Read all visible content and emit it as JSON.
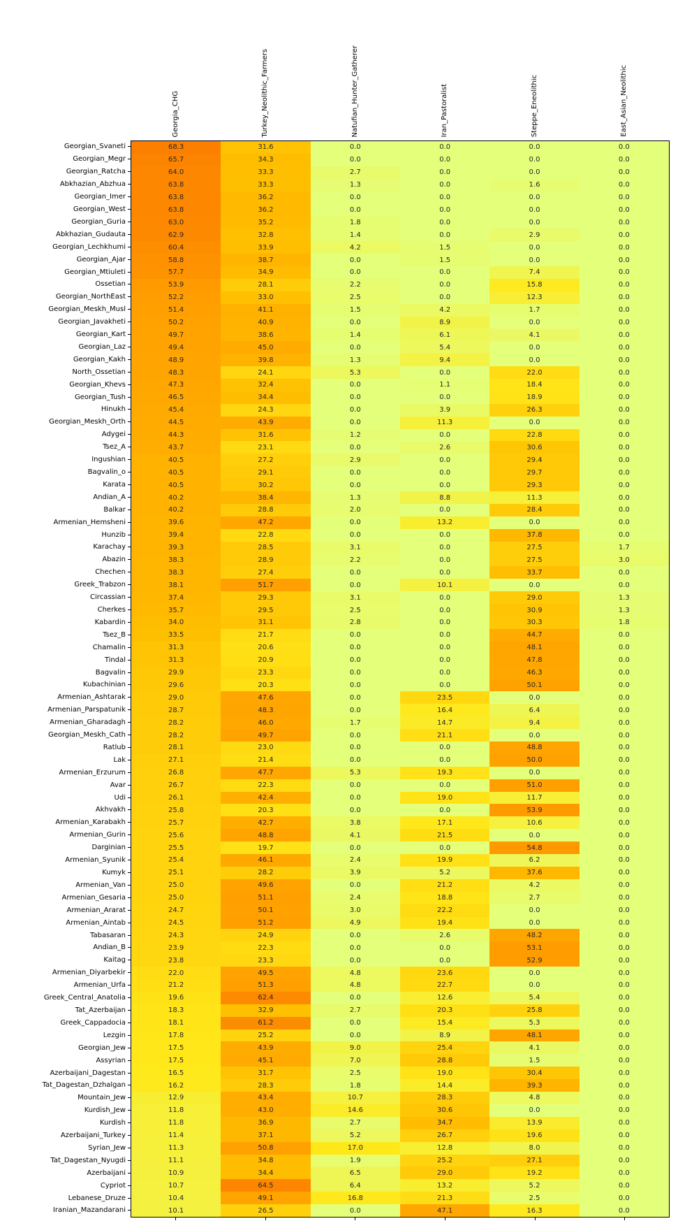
{
  "chart_data": {
    "type": "heatmap",
    "title": "",
    "xlabel": "",
    "ylabel": "",
    "grid": "off",
    "legend": "none",
    "value_format": "one_decimal",
    "annotation_color": "#262626",
    "colormap": {
      "name": "Wistia",
      "stops": [
        "#e4ff7a",
        "#ffe81a",
        "#ffbd00",
        "#ffa000",
        "#fc7f00"
      ],
      "vmin": 0,
      "vmax": 68.3
    },
    "columns": [
      "Georgia_CHG",
      "Turkey_Neolithic_Farmers",
      "Natufian_Hunter_Gatherer",
      "Iran_Pastoralist",
      "Steppe_Eneolithic",
      "East_Asian_Neolithic"
    ],
    "rows": [
      "Georgian_Svaneti",
      "Georgian_Megr",
      "Georgian_Ratcha",
      "Abkhazian_Abzhua",
      "Georgian_Imer",
      "Georgian_West",
      "Georgian_Guria",
      "Abkhazian_Gudauta",
      "Georgian_Lechkhumi",
      "Georgian_Ajar",
      "Georgian_Mtiuleti",
      "Ossetian",
      "Georgian_NorthEast",
      "Georgian_Meskh_Musl",
      "Georgian_Javakheti",
      "Georgian_Kart",
      "Georgian_Laz",
      "Georgian_Kakh",
      "North_Ossetian",
      "Georgian_Khevs",
      "Georgian_Tush",
      "Hinukh",
      "Georgian_Meskh_Orth",
      "Adygei",
      "Tsez_A",
      "Ingushian",
      "Bagvalin_o",
      "Karata",
      "Andian_A",
      "Balkar",
      "Armenian_Hemsheni",
      "Hunzib",
      "Karachay",
      "Abazin",
      "Chechen",
      "Greek_Trabzon",
      "Circassian",
      "Cherkes",
      "Kabardin",
      "Tsez_B",
      "Chamalin",
      "Tindal",
      "Bagvalin",
      "Kubachinian",
      "Armenian_Ashtarak",
      "Armenian_Parspatunik",
      "Armenian_Gharadagh",
      "Georgian_Meskh_Cath",
      "Ratlub",
      "Lak",
      "Armenian_Erzurum",
      "Avar",
      "Udi",
      "Akhvakh",
      "Armenian_Karabakh",
      "Armenian_Gurin",
      "Darginian",
      "Armenian_Syunik",
      "Kumyk",
      "Armenian_Van",
      "Armenian_Gesaria",
      "Armenian_Ararat",
      "Armenian_Aintab",
      "Tabasaran",
      "Andian_B",
      "Kaitag",
      "Armenian_Diyarbekir",
      "Armenian_Urfa",
      "Greek_Central_Anatolia",
      "Tat_Azerbaijan",
      "Greek_Cappadocia",
      "Lezgin",
      "Georgian_Jew",
      "Assyrian",
      "Azerbaijani_Dagestan",
      "Tat_Dagestan_Dzhalgan",
      "Mountain_Jew",
      "Kurdish_Jew",
      "Kurdish",
      "Azerbaijani_Turkey",
      "Syrian_Jew",
      "Tat_Dagestan_Nyugdi",
      "Azerbaijani",
      "Cypriot",
      "Lebanese_Druze",
      "Iranian_Mazandarani"
    ],
    "values": [
      [
        68.3,
        31.6,
        0.0,
        0.0,
        0.0,
        0.0
      ],
      [
        65.7,
        34.3,
        0.0,
        0.0,
        0.0,
        0.0
      ],
      [
        64.0,
        33.3,
        2.7,
        0.0,
        0.0,
        0.0
      ],
      [
        63.8,
        33.3,
        1.3,
        0.0,
        1.6,
        0.0
      ],
      [
        63.8,
        36.2,
        0.0,
        0.0,
        0.0,
        0.0
      ],
      [
        63.8,
        36.2,
        0.0,
        0.0,
        0.0,
        0.0
      ],
      [
        63.0,
        35.2,
        1.8,
        0.0,
        0.0,
        0.0
      ],
      [
        62.9,
        32.8,
        1.4,
        0.0,
        2.9,
        0.0
      ],
      [
        60.4,
        33.9,
        4.2,
        1.5,
        0.0,
        0.0
      ],
      [
        58.8,
        38.7,
        0.0,
        1.5,
        0.0,
        0.0
      ],
      [
        57.7,
        34.9,
        0.0,
        0.0,
        7.4,
        0.0
      ],
      [
        53.9,
        28.1,
        2.2,
        0.0,
        15.8,
        0.0
      ],
      [
        52.2,
        33.0,
        2.5,
        0.0,
        12.3,
        0.0
      ],
      [
        51.4,
        41.1,
        1.5,
        4.2,
        1.7,
        0.0
      ],
      [
        50.2,
        40.9,
        0.0,
        8.9,
        0.0,
        0.0
      ],
      [
        49.7,
        38.6,
        1.4,
        6.1,
        4.1,
        0.0
      ],
      [
        49.4,
        45.0,
        0.0,
        5.4,
        0.0,
        0.0
      ],
      [
        48.9,
        39.8,
        1.3,
        9.4,
        0.0,
        0.0
      ],
      [
        48.3,
        24.1,
        5.3,
        0.0,
        22.0,
        0.0
      ],
      [
        47.3,
        32.4,
        0.0,
        1.1,
        18.4,
        0.0
      ],
      [
        46.5,
        34.4,
        0.0,
        0.0,
        18.9,
        0.0
      ],
      [
        45.4,
        24.3,
        0.0,
        3.9,
        26.3,
        0.0
      ],
      [
        44.5,
        43.9,
        0.0,
        11.3,
        0.0,
        0.0
      ],
      [
        44.3,
        31.6,
        1.2,
        0.0,
        22.8,
        0.0
      ],
      [
        43.7,
        23.1,
        0.0,
        2.6,
        30.6,
        0.0
      ],
      [
        40.5,
        27.2,
        2.9,
        0.0,
        29.4,
        0.0
      ],
      [
        40.5,
        29.1,
        0.0,
        0.0,
        29.7,
        0.0
      ],
      [
        40.5,
        30.2,
        0.0,
        0.0,
        29.3,
        0.0
      ],
      [
        40.2,
        38.4,
        1.3,
        8.8,
        11.3,
        0.0
      ],
      [
        40.2,
        28.8,
        2.0,
        0.0,
        28.4,
        0.0
      ],
      [
        39.6,
        47.2,
        0.0,
        13.2,
        0.0,
        0.0
      ],
      [
        39.4,
        22.8,
        0.0,
        0.0,
        37.8,
        0.0
      ],
      [
        39.3,
        28.5,
        3.1,
        0.0,
        27.5,
        1.7
      ],
      [
        38.3,
        28.9,
        2.2,
        0.0,
        27.5,
        3.0
      ],
      [
        38.3,
        27.4,
        0.0,
        0.0,
        33.7,
        0.0
      ],
      [
        38.1,
        51.7,
        0.0,
        10.1,
        0.0,
        0.0
      ],
      [
        37.4,
        29.3,
        3.1,
        0.0,
        29.0,
        1.3
      ],
      [
        35.7,
        29.5,
        2.5,
        0.0,
        30.9,
        1.3
      ],
      [
        34.0,
        31.1,
        2.8,
        0.0,
        30.3,
        1.8
      ],
      [
        33.5,
        21.7,
        0.0,
        0.0,
        44.7,
        0.0
      ],
      [
        31.3,
        20.6,
        0.0,
        0.0,
        48.1,
        0.0
      ],
      [
        31.3,
        20.9,
        0.0,
        0.0,
        47.8,
        0.0
      ],
      [
        29.9,
        23.3,
        0.0,
        0.0,
        46.3,
        0.0
      ],
      [
        29.6,
        20.3,
        0.0,
        0.0,
        50.1,
        0.0
      ],
      [
        29.0,
        47.6,
        0.0,
        23.5,
        0.0,
        0.0
      ],
      [
        28.7,
        48.3,
        0.0,
        16.4,
        6.4,
        0.0
      ],
      [
        28.2,
        46.0,
        1.7,
        14.7,
        9.4,
        0.0
      ],
      [
        28.2,
        49.7,
        0.0,
        21.1,
        0.0,
        0.0
      ],
      [
        28.1,
        23.0,
        0.0,
        0.0,
        48.8,
        0.0
      ],
      [
        27.1,
        21.4,
        0.0,
        0.0,
        50.0,
        0.0
      ],
      [
        26.8,
        47.7,
        5.3,
        19.3,
        0.0,
        0.0
      ],
      [
        26.7,
        22.3,
        0.0,
        0.0,
        51.0,
        0.0
      ],
      [
        26.1,
        42.4,
        0.0,
        19.0,
        11.7,
        0.0
      ],
      [
        25.8,
        20.3,
        0.0,
        0.0,
        53.9,
        0.0
      ],
      [
        25.7,
        42.7,
        3.8,
        17.1,
        10.6,
        0.0
      ],
      [
        25.6,
        48.8,
        4.1,
        21.5,
        0.0,
        0.0
      ],
      [
        25.5,
        19.7,
        0.0,
        0.0,
        54.8,
        0.0
      ],
      [
        25.4,
        46.1,
        2.4,
        19.9,
        6.2,
        0.0
      ],
      [
        25.1,
        28.2,
        3.9,
        5.2,
        37.6,
        0.0
      ],
      [
        25.0,
        49.6,
        0.0,
        21.2,
        4.2,
        0.0
      ],
      [
        25.0,
        51.1,
        2.4,
        18.8,
        2.7,
        0.0
      ],
      [
        24.7,
        50.1,
        3.0,
        22.2,
        0.0,
        0.0
      ],
      [
        24.5,
        51.2,
        4.9,
        19.4,
        0.0,
        0.0
      ],
      [
        24.3,
        24.9,
        0.0,
        2.6,
        48.2,
        0.0
      ],
      [
        23.9,
        22.3,
        0.0,
        0.0,
        53.1,
        0.0
      ],
      [
        23.8,
        23.3,
        0.0,
        0.0,
        52.9,
        0.0
      ],
      [
        22.0,
        49.5,
        4.8,
        23.6,
        0.0,
        0.0
      ],
      [
        21.2,
        51.3,
        4.8,
        22.7,
        0.0,
        0.0
      ],
      [
        19.6,
        62.4,
        0.0,
        12.6,
        5.4,
        0.0
      ],
      [
        18.3,
        32.9,
        2.7,
        20.3,
        25.8,
        0.0
      ],
      [
        18.1,
        61.2,
        0.0,
        15.4,
        5.3,
        0.0
      ],
      [
        17.8,
        25.2,
        0.0,
        8.9,
        48.1,
        0.0
      ],
      [
        17.5,
        43.9,
        9.0,
        25.4,
        4.1,
        0.0
      ],
      [
        17.5,
        45.1,
        7.0,
        28.8,
        1.5,
        0.0
      ],
      [
        16.5,
        31.7,
        2.5,
        19.0,
        30.4,
        0.0
      ],
      [
        16.2,
        28.3,
        1.8,
        14.4,
        39.3,
        0.0
      ],
      [
        12.9,
        43.4,
        10.7,
        28.3,
        4.8,
        0.0
      ],
      [
        11.8,
        43.0,
        14.6,
        30.6,
        0.0,
        0.0
      ],
      [
        11.8,
        36.9,
        2.7,
        34.7,
        13.9,
        0.0
      ],
      [
        11.4,
        37.1,
        5.2,
        26.7,
        19.6,
        0.0
      ],
      [
        11.3,
        50.8,
        17.0,
        12.8,
        8.0,
        0.0
      ],
      [
        11.1,
        34.8,
        1.9,
        25.2,
        27.1,
        0.0
      ],
      [
        10.9,
        34.4,
        6.5,
        29.0,
        19.2,
        0.0
      ],
      [
        10.7,
        64.5,
        6.4,
        13.2,
        5.2,
        0.0
      ],
      [
        10.4,
        49.1,
        16.8,
        21.3,
        2.5,
        0.0
      ],
      [
        10.1,
        26.5,
        0.0,
        47.1,
        16.3,
        0.0
      ]
    ]
  }
}
